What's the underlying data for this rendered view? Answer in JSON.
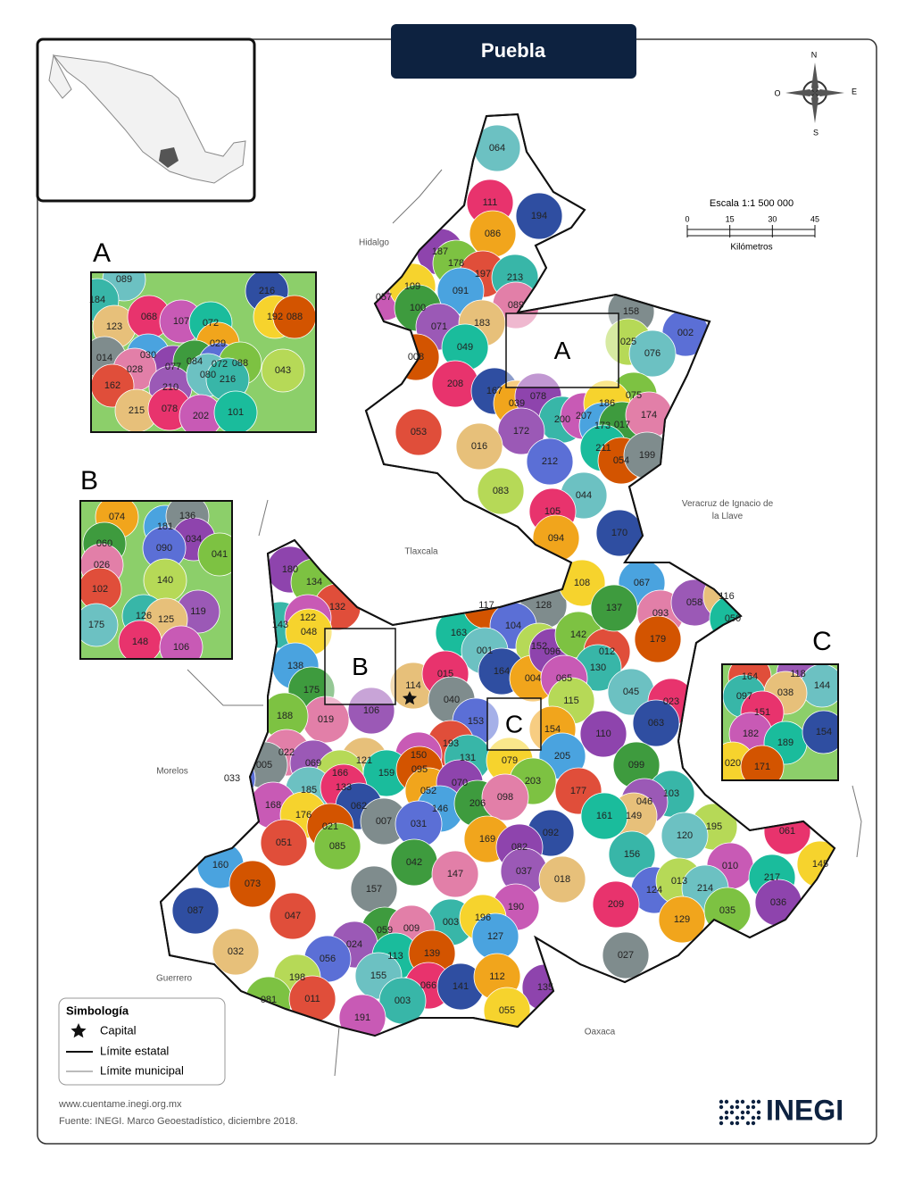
{
  "title": "Puebla",
  "compass": {
    "n": "N",
    "w": "O",
    "e": "E",
    "s": "S"
  },
  "scale": {
    "label": "Escala 1:1 500 000",
    "ticks": [
      0,
      15,
      30,
      45
    ],
    "unit": "Kilómetros"
  },
  "neighbors": [
    "Hidalgo",
    "Tlaxcala",
    "Veracruz de Ignacio de la Llave",
    "Morelos",
    "Guerrero",
    "Oaxaca"
  ],
  "municipalities": [
    "064",
    "111",
    "194",
    "086",
    "187",
    "178",
    "197",
    "213",
    "057",
    "109",
    "091",
    "100",
    "089",
    "071",
    "183",
    "049",
    "008",
    "158",
    "002",
    "025",
    "076",
    "208",
    "167",
    "039",
    "078",
    "075",
    "053",
    "200",
    "207",
    "186",
    "173",
    "017",
    "174",
    "172",
    "016",
    "211",
    "054",
    "199",
    "212",
    "083",
    "044",
    "105",
    "170",
    "094",
    "180",
    "134",
    "132",
    "143",
    "122",
    "048",
    "138",
    "175",
    "019",
    "106",
    "114",
    "163",
    "117",
    "128",
    "104",
    "152",
    "001",
    "015",
    "164",
    "004",
    "096",
    "142",
    "012",
    "130",
    "065",
    "108",
    "067",
    "137",
    "093",
    "058",
    "116",
    "050",
    "179",
    "040",
    "153",
    "115",
    "045",
    "023",
    "063",
    "154",
    "110",
    "188",
    "193",
    "131",
    "150",
    "079",
    "205",
    "099",
    "022",
    "069",
    "121",
    "159",
    "095",
    "005",
    "033",
    "166",
    "185",
    "133",
    "062",
    "052",
    "070",
    "203",
    "177",
    "103",
    "168",
    "176",
    "146",
    "206",
    "098",
    "046",
    "149",
    "161",
    "021",
    "007",
    "031",
    "195",
    "120",
    "061",
    "092",
    "169",
    "082",
    "085",
    "051",
    "156",
    "010",
    "145",
    "160",
    "042",
    "147",
    "037",
    "018",
    "217",
    "073",
    "157",
    "124",
    "013",
    "214",
    "209",
    "087",
    "129",
    "036",
    "035",
    "047",
    "003",
    "190",
    "196",
    "127",
    "059",
    "009",
    "024",
    "032",
    "113",
    "139",
    "027",
    "056",
    "198",
    "155",
    "066",
    "141",
    "112",
    "135",
    "081",
    "011",
    "003",
    "191",
    "055"
  ],
  "insets": [
    {
      "letter": "A",
      "labels": [
        "089",
        "184",
        "123",
        "068",
        "107",
        "072",
        "216",
        "192",
        "088",
        "029",
        "030",
        "014",
        "077",
        "084",
        "072",
        "088",
        "028",
        "043",
        "162",
        "210",
        "080",
        "216",
        "215",
        "078",
        "202",
        "101"
      ]
    },
    {
      "letter": "B",
      "labels": [
        "074",
        "181",
        "136",
        "034",
        "060",
        "090",
        "041",
        "026",
        "140",
        "102",
        "119",
        "175",
        "126",
        "125",
        "148",
        "106"
      ]
    },
    {
      "letter": "C",
      "labels": [
        "164",
        "118",
        "144",
        "097",
        "038",
        "151",
        "182",
        "189",
        "154",
        "020",
        "171"
      ]
    }
  ],
  "legend": {
    "title": "Simbología",
    "items": [
      "Capital",
      "Límite estatal",
      "Límite municipal"
    ]
  },
  "footer": {
    "url": "www.cuentame.inegi.org.mx",
    "source": "Fuente: INEGI. Marco Geoestadístico, diciembre 2018."
  },
  "logo": "INEGI"
}
